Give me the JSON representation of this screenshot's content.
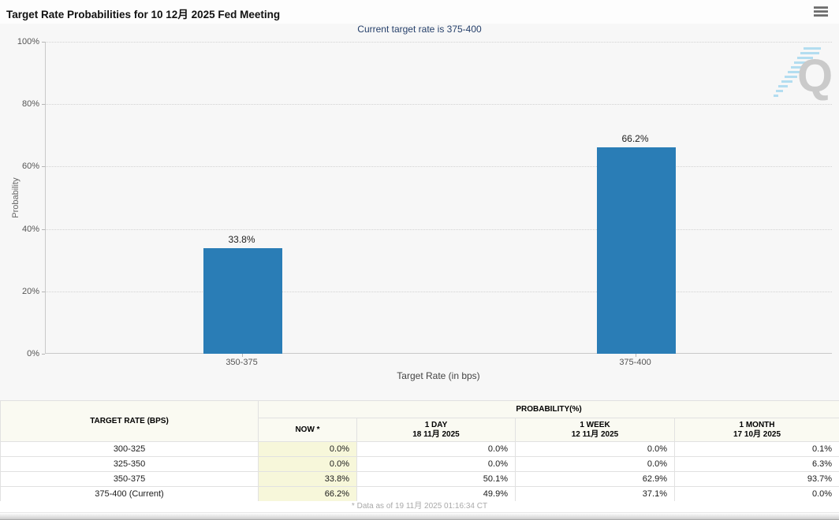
{
  "header": {
    "title": "Target Rate Probabilities for 10 12月 2025 Fed Meeting"
  },
  "subtitle": "Current target rate is 375-400",
  "chart_data": {
    "type": "bar",
    "title": "Target Rate Probabilities for 10 12月 2025 Fed Meeting",
    "subtitle": "Current target rate is 375-400",
    "categories": [
      "350-375",
      "375-400"
    ],
    "values": [
      33.8,
      66.2
    ],
    "value_labels": [
      "33.8%",
      "66.2%"
    ],
    "xlabel": "Target Rate (in bps)",
    "ylabel": "Probability",
    "ylim": [
      0,
      100
    ],
    "yticks": [
      0,
      20,
      40,
      60,
      80,
      100
    ],
    "ytick_suffix": "%",
    "grid": "horizontal-dotted",
    "legend": "none",
    "bar_color": "#2a7db6",
    "watermark": "Q"
  },
  "table": {
    "rate_header": "TARGET RATE (BPS)",
    "group_header": "PROBABILITY(%)",
    "columns": [
      {
        "label": "NOW *",
        "sub": ""
      },
      {
        "label": "1 DAY",
        "sub": "18 11月 2025"
      },
      {
        "label": "1 WEEK",
        "sub": "12 11月 2025"
      },
      {
        "label": "1 MONTH",
        "sub": "17 10月 2025"
      }
    ],
    "rows": [
      {
        "rate": "300-325",
        "values": [
          "0.0%",
          "0.0%",
          "0.0%",
          "0.1%"
        ]
      },
      {
        "rate": "325-350",
        "values": [
          "0.0%",
          "0.0%",
          "0.0%",
          "6.3%"
        ]
      },
      {
        "rate": "350-375",
        "values": [
          "33.8%",
          "50.1%",
          "62.9%",
          "93.7%"
        ]
      },
      {
        "rate": "375-400 (Current)",
        "values": [
          "66.2%",
          "49.9%",
          "37.1%",
          "0.0%"
        ]
      }
    ]
  },
  "footer": {
    "note": "* Data as of 19 11月 2025 01:16:34 CT"
  },
  "colors": {
    "bar": "#2a7db6",
    "now_column_bg": "#f7f7da",
    "subtitle_text": "#26406b",
    "header_bg": "#fafaf2"
  }
}
